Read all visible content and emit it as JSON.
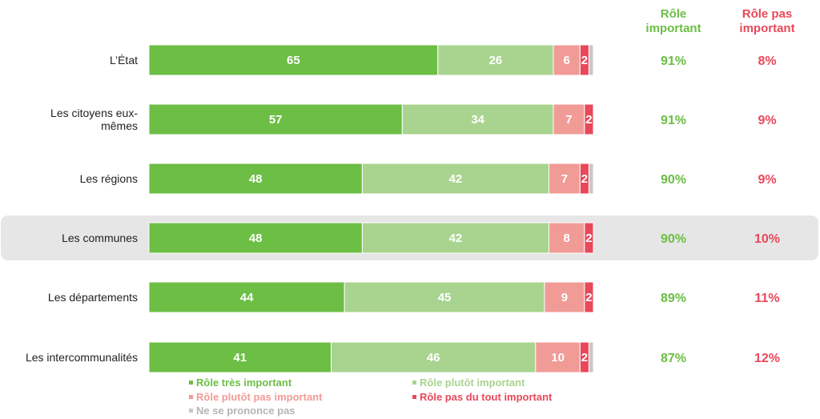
{
  "colors": {
    "tres_important": "#6cbe45",
    "plutot_important": "#a9d48f",
    "plutot_pas_important": "#f19b97",
    "pas_du_tout_important": "#e8485a",
    "ne_se_prononce_pas": "#c8c8c8",
    "head_important": "#6cbe45",
    "head_pas_important": "#e8485a",
    "highlight": "#e6e6e6"
  },
  "summary_headers": {
    "important": [
      "Rôle",
      "important"
    ],
    "pas_important": [
      "Rôle pas",
      "important"
    ]
  },
  "chart_data": {
    "type": "bar",
    "orientation": "horizontal",
    "stacked": true,
    "unit": "%",
    "categories": [
      [
        "L’État"
      ],
      [
        "Les citoyens eux-",
        "mêmes"
      ],
      [
        "Les régions"
      ],
      [
        "Les communes"
      ],
      [
        "Les départements"
      ],
      [
        "Les intercommunalités"
      ]
    ],
    "highlighted_category_index": 3,
    "series": [
      {
        "name": "Rôle très important",
        "values": [
          65,
          57,
          48,
          48,
          44,
          41
        ]
      },
      {
        "name": "Rôle plutôt important",
        "values": [
          26,
          34,
          42,
          42,
          45,
          46
        ]
      },
      {
        "name": "Rôle plutôt pas important",
        "values": [
          6,
          7,
          7,
          8,
          9,
          10
        ]
      },
      {
        "name": "Rôle pas du tout important",
        "values": [
          2,
          2,
          2,
          2,
          2,
          2
        ]
      },
      {
        "name": "Ne se prononce pas",
        "values": [
          1,
          0,
          1,
          0,
          0,
          1
        ]
      }
    ],
    "summary": {
      "important": [
        "91%",
        "91%",
        "90%",
        "90%",
        "89%",
        "87%"
      ],
      "pas_important": [
        "8%",
        "9%",
        "9%",
        "10%",
        "11%",
        "12%"
      ]
    },
    "legend_position": "bottom",
    "grid": false
  }
}
